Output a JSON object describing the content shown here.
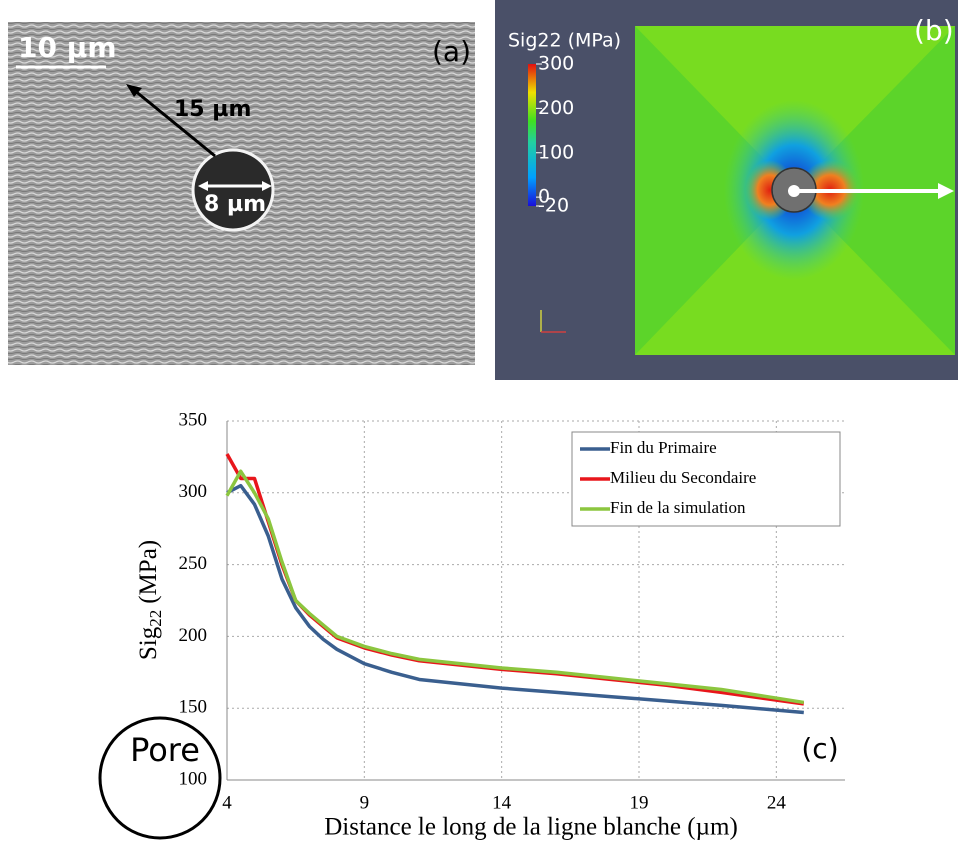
{
  "image_a": {
    "scale_bar": "10 µm",
    "panel_label": "(a)",
    "arrow_label": "15 µm",
    "pore_label": "8 µm"
  },
  "image_b": {
    "panel_label": "(b)",
    "colorbar": {
      "title": "Sig22 (MPa)",
      "lim": [
        -20,
        300
      ],
      "ticks": [
        300,
        200,
        100,
        0,
        -20
      ]
    }
  },
  "chart_data": {
    "type": "line",
    "y_label": {
      "main": "Sig",
      "sub": "22",
      "unit": "(MPa)"
    },
    "x_label": "Distance le long de la ligne blanche (µm)",
    "annotations": {
      "pore": "Pore",
      "panel": "(c)"
    },
    "x": [
      4,
      4.5,
      5,
      5.5,
      6,
      6.5,
      7,
      7.5,
      8,
      9,
      10,
      11,
      12,
      13,
      14,
      16,
      18,
      20,
      22,
      25
    ],
    "series": [
      {
        "name": "Fin du Primaire",
        "color": "#3a5f8f",
        "values": [
          300,
          305,
          292,
          270,
          240,
          220,
          207,
          198,
          191,
          181,
          175,
          170,
          168,
          166,
          164,
          161,
          158,
          155,
          152,
          147
        ]
      },
      {
        "name": "Milieu du Secondaire",
        "color": "#e8161b",
        "values": [
          327,
          310,
          310,
          280,
          250,
          225,
          215,
          207,
          199,
          192,
          187,
          183,
          181,
          179,
          177,
          174,
          170,
          166,
          161,
          153
        ]
      },
      {
        "name": "Fin de la simulation",
        "color": "#8cc63f",
        "values": [
          298,
          315,
          300,
          282,
          252,
          225,
          216,
          208,
          200,
          193,
          188,
          184,
          182,
          180,
          178,
          175,
          171,
          167,
          163,
          154
        ]
      }
    ],
    "xlim": [
      4,
      26.5
    ],
    "ylim": [
      100,
      350
    ],
    "xticks": [
      4,
      9,
      14,
      19,
      24
    ],
    "yticks": [
      100,
      150,
      200,
      250,
      300,
      350
    ],
    "grid": true,
    "legend": "top-right"
  }
}
